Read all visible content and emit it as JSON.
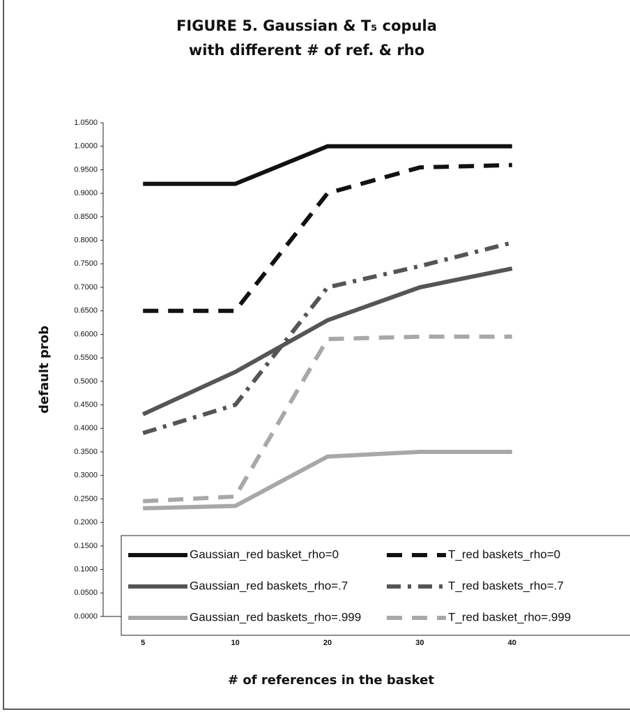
{
  "chart_data": {
    "type": "line",
    "title": [
      "FIGURE 5. Gaussian & T₅ copula",
      "with different # of ref. & rho"
    ],
    "xlabel": "# of references in the basket",
    "ylabel": "default prob",
    "categories": [
      "5",
      "10",
      "20",
      "30",
      "40"
    ],
    "ylim": [
      0,
      1.05
    ],
    "yticks": [
      {
        "value": 0,
        "label": "0.0000"
      },
      {
        "value": 0.05,
        "label": "0.0500"
      },
      {
        "value": 0.1,
        "label": "0.1000"
      },
      {
        "value": 0.15,
        "label": "0.1500"
      },
      {
        "value": 0.2,
        "label": "0.2000"
      },
      {
        "value": 0.25,
        "label": "0.2500"
      },
      {
        "value": 0.3,
        "label": "0.3000"
      },
      {
        "value": 0.35,
        "label": "0.3500"
      },
      {
        "value": 0.4,
        "label": "0.4000"
      },
      {
        "value": 0.45,
        "label": "0.4500"
      },
      {
        "value": 0.5,
        "label": "0.5000"
      },
      {
        "value": 0.55,
        "label": "0.5500"
      },
      {
        "value": 0.6,
        "label": "0.6000"
      },
      {
        "value": 0.65,
        "label": "0.6500"
      },
      {
        "value": 0.7,
        "label": "0.7000"
      },
      {
        "value": 0.75,
        "label": "0.7500"
      },
      {
        "value": 0.8,
        "label": "0.8000"
      },
      {
        "value": 0.85,
        "label": "0.8500"
      },
      {
        "value": 0.9,
        "label": "0.9000"
      },
      {
        "value": 0.95,
        "label": "0.9500"
      },
      {
        "value": 1.0,
        "label": "1.0000"
      },
      {
        "value": 1.05,
        "label": "1.0500"
      }
    ],
    "grid": false,
    "series": [
      {
        "name": "Gaussian_red basket_rho=0",
        "color": "#111111",
        "dash": "solid",
        "values": [
          0.92,
          0.92,
          1.0,
          1.0,
          1.0
        ]
      },
      {
        "name": "T_red baskets_rho=0",
        "color": "#111111",
        "dash": "dashed",
        "values": [
          0.65,
          0.65,
          0.9,
          0.955,
          0.96
        ]
      },
      {
        "name": "Gaussian_red baskets_rho=.7",
        "color": "#555555",
        "dash": "solid",
        "values": [
          0.43,
          0.52,
          0.63,
          0.7,
          0.74
        ]
      },
      {
        "name": "T_red baskets_rho=.7",
        "color": "#555555",
        "dash": "dashdot",
        "values": [
          0.39,
          0.45,
          0.7,
          0.745,
          0.795
        ]
      },
      {
        "name": "Gaussian_red baskets_rho=.999",
        "color": "#a8a8a8",
        "dash": "solid",
        "values": [
          0.23,
          0.235,
          0.34,
          0.35,
          0.35
        ]
      },
      {
        "name": "T_red basket_rho=.999",
        "color": "#a8a8a8",
        "dash": "dashed",
        "values": [
          0.245,
          0.255,
          0.59,
          0.595,
          0.595
        ]
      }
    ]
  }
}
